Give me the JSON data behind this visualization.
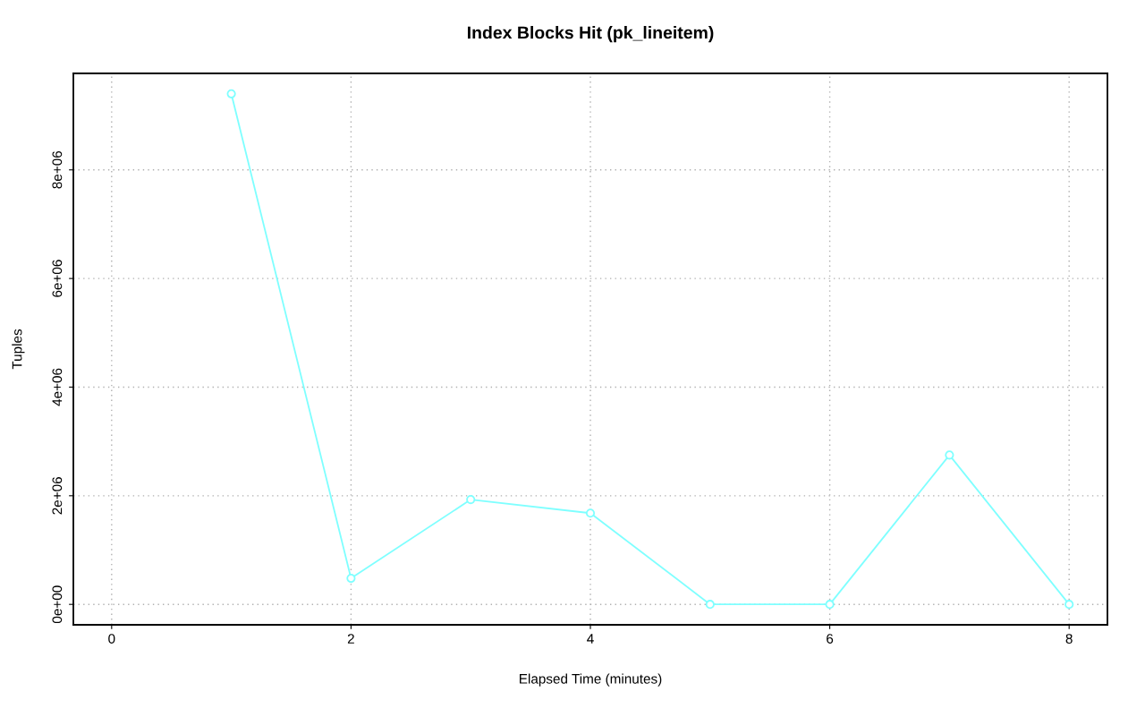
{
  "chart_data": {
    "type": "line",
    "title": "Index Blocks Hit (pk_lineitem)",
    "xlabel": "Elapsed Time (minutes)",
    "ylabel": "Tuples",
    "x": [
      1,
      2,
      3,
      4,
      5,
      6,
      7,
      8
    ],
    "series": [
      {
        "color": "#7fffff",
        "values": [
          9400000,
          480000,
          1930000,
          1680000,
          0,
          0,
          2750000,
          0
        ]
      }
    ],
    "xlim": [
      -0.32,
      8.32
    ],
    "ylim": [
      -376000,
      9776000
    ],
    "xticks": [
      0,
      2,
      4,
      6,
      8
    ],
    "yticks": [
      {
        "value": 0,
        "label": "0e+00"
      },
      {
        "value": 2000000,
        "label": "2e+06"
      },
      {
        "value": 4000000,
        "label": "4e+06"
      },
      {
        "value": 6000000,
        "label": "6e+06"
      },
      {
        "value": 8000000,
        "label": "8e+06"
      }
    ],
    "grid": true,
    "marker": "circle",
    "line_style": "solid"
  }
}
